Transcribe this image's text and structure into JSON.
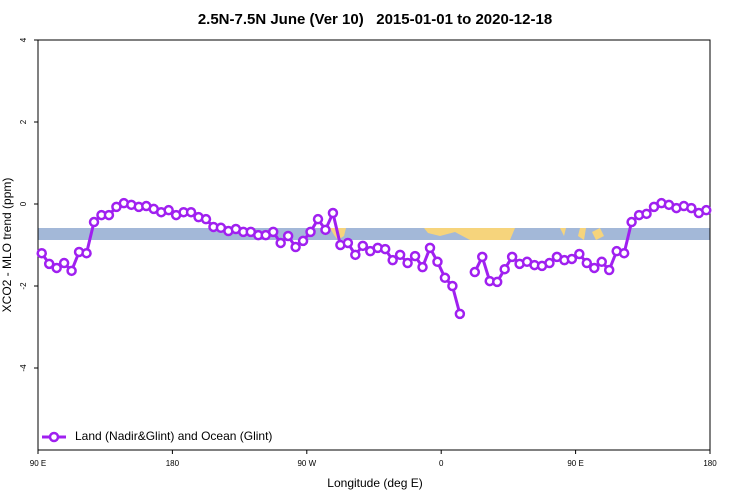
{
  "chart_data": {
    "type": "line",
    "title": "2.5N-7.5N June (Ver 10)   2015-01-01 to 2020-12-18",
    "xlabel": "Longitude (deg E)",
    "ylabel": "XCO2 - MLO trend (ppm)",
    "xlim": [
      90,
      540
    ],
    "ylim": [
      -6,
      4
    ],
    "xticks": [
      {
        "value": 90,
        "label": "90 E"
      },
      180,
      {
        "value": 270,
        "label": "90 W"
      },
      {
        "value": 360,
        "label": "0"
      },
      {
        "value": 450,
        "label": "90 E"
      },
      {
        "value": 540,
        "label": "180"
      }
    ],
    "yticks": [
      4,
      2,
      0,
      -2,
      -4
    ],
    "legend": "bottom-left",
    "x": [
      92.5,
      97.5,
      102.5,
      107.5,
      112.5,
      117.5,
      122.5,
      127.5,
      132.5,
      137.5,
      142.5,
      147.5,
      152.5,
      157.5,
      162.5,
      167.5,
      172.5,
      177.5,
      182.5,
      187.5,
      192.5,
      197.5,
      202.5,
      207.5,
      212.5,
      217.5,
      222.5,
      227.5,
      232.5,
      237.5,
      242.5,
      247.5,
      252.5,
      257.5,
      262.5,
      267.5,
      272.5,
      277.5,
      282.5,
      287.5,
      292.5,
      297.5,
      302.5,
      307.5,
      312.5,
      317.5,
      322.5,
      327.5,
      332.5,
      337.5,
      342.5,
      347.5,
      352.5,
      357.5,
      362.5,
      367.5,
      372.5,
      377.5,
      382.5,
      387.5,
      392.5,
      397.5,
      402.5,
      407.5,
      412.5,
      417.5,
      422.5,
      427.5,
      432.5,
      437.5,
      442.5,
      447.5,
      452.5,
      457.5,
      462.5,
      467.5,
      472.5,
      477.5,
      482.5,
      487.5,
      492.5,
      497.5,
      502.5,
      507.5,
      512.5,
      517.5,
      522.5,
      527.5,
      532.5,
      537.5
    ],
    "series": [
      {
        "name": "Land (Nadir&Glint) and Ocean (Glint)",
        "color": "#a020f0",
        "values": [
          -1.2,
          -1.46,
          -1.56,
          -1.44,
          -1.63,
          -1.17,
          -1.2,
          -0.44,
          -0.27,
          -0.27,
          -0.07,
          0.02,
          -0.02,
          -0.07,
          -0.05,
          -0.12,
          -0.2,
          -0.15,
          -0.27,
          -0.2,
          -0.2,
          -0.32,
          -0.37,
          -0.56,
          -0.58,
          -0.66,
          -0.61,
          -0.68,
          -0.68,
          -0.76,
          -0.76,
          -0.68,
          -0.95,
          -0.78,
          -1.05,
          -0.9,
          -0.68,
          -0.37,
          -0.63,
          -0.22,
          -1.0,
          -0.95,
          -1.24,
          -1.02,
          -1.15,
          -1.07,
          -1.1,
          -1.37,
          -1.24,
          -1.44,
          -1.27,
          -1.54,
          -1.07,
          -1.41,
          -1.8,
          -2.0,
          -2.68,
          null,
          -1.66,
          -1.29,
          -1.88,
          -1.9,
          -1.59,
          -1.29,
          -1.46,
          -1.41,
          -1.49,
          -1.51,
          -1.44,
          -1.29,
          -1.37,
          -1.34,
          -1.22,
          -1.44,
          -1.56,
          -1.41,
          -1.61,
          -1.15,
          -1.2,
          -0.44,
          -0.27,
          -0.24,
          -0.07,
          0.02,
          -0.02,
          -0.1,
          -0.05,
          -0.1,
          -0.22,
          -0.15
        ]
      }
    ]
  }
}
